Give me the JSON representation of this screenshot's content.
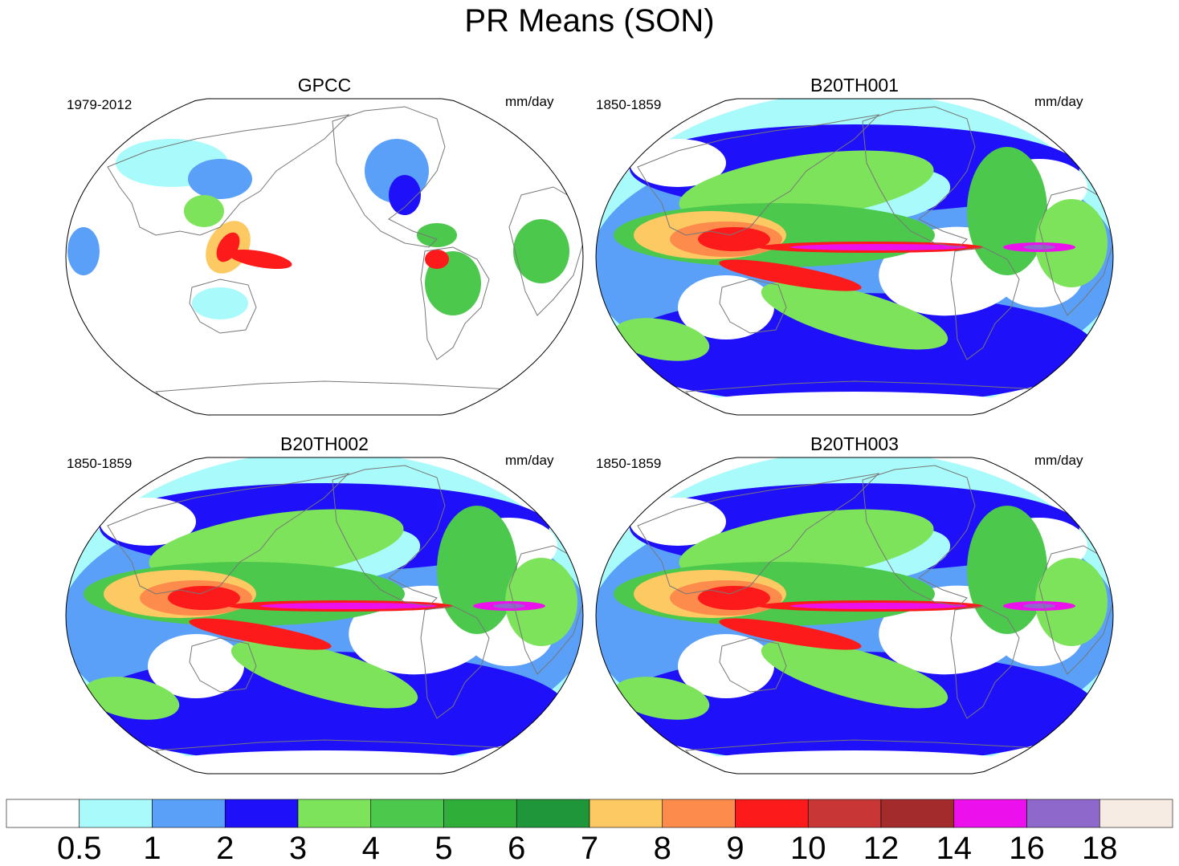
{
  "figure": {
    "title": "PR Means (SON)"
  },
  "colors": {
    "levels": [
      "#ffffff",
      "#a9fbfb",
      "#5aa0f9",
      "#1e10f9",
      "#7de35a",
      "#4cc84c",
      "#2fae3a",
      "#20963a",
      "#fdc963",
      "#fd8b4c",
      "#fd1a1a",
      "#c83636",
      "#a32b2b",
      "#ec10ec",
      "#8f68cb",
      "#f6ece4"
    ],
    "land_outline": "#777777",
    "map_border": "#000000"
  },
  "panels": [
    {
      "title": "GPCC",
      "period": "1979-2012",
      "units": "mm/day",
      "coverage": "land-only"
    },
    {
      "title": "B20TH001",
      "period": "1850-1859",
      "units": "mm/day",
      "coverage": "global"
    },
    {
      "title": "B20TH002",
      "period": "1850-1859",
      "units": "mm/day",
      "coverage": "global"
    },
    {
      "title": "B20TH003",
      "period": "1850-1859",
      "units": "mm/day",
      "coverage": "global"
    }
  ],
  "colorbar": {
    "labels": [
      "0.5",
      "1",
      "2",
      "3",
      "4",
      "5",
      "6",
      "7",
      "8",
      "9",
      "10",
      "12",
      "14",
      "16",
      "18"
    ]
  }
}
